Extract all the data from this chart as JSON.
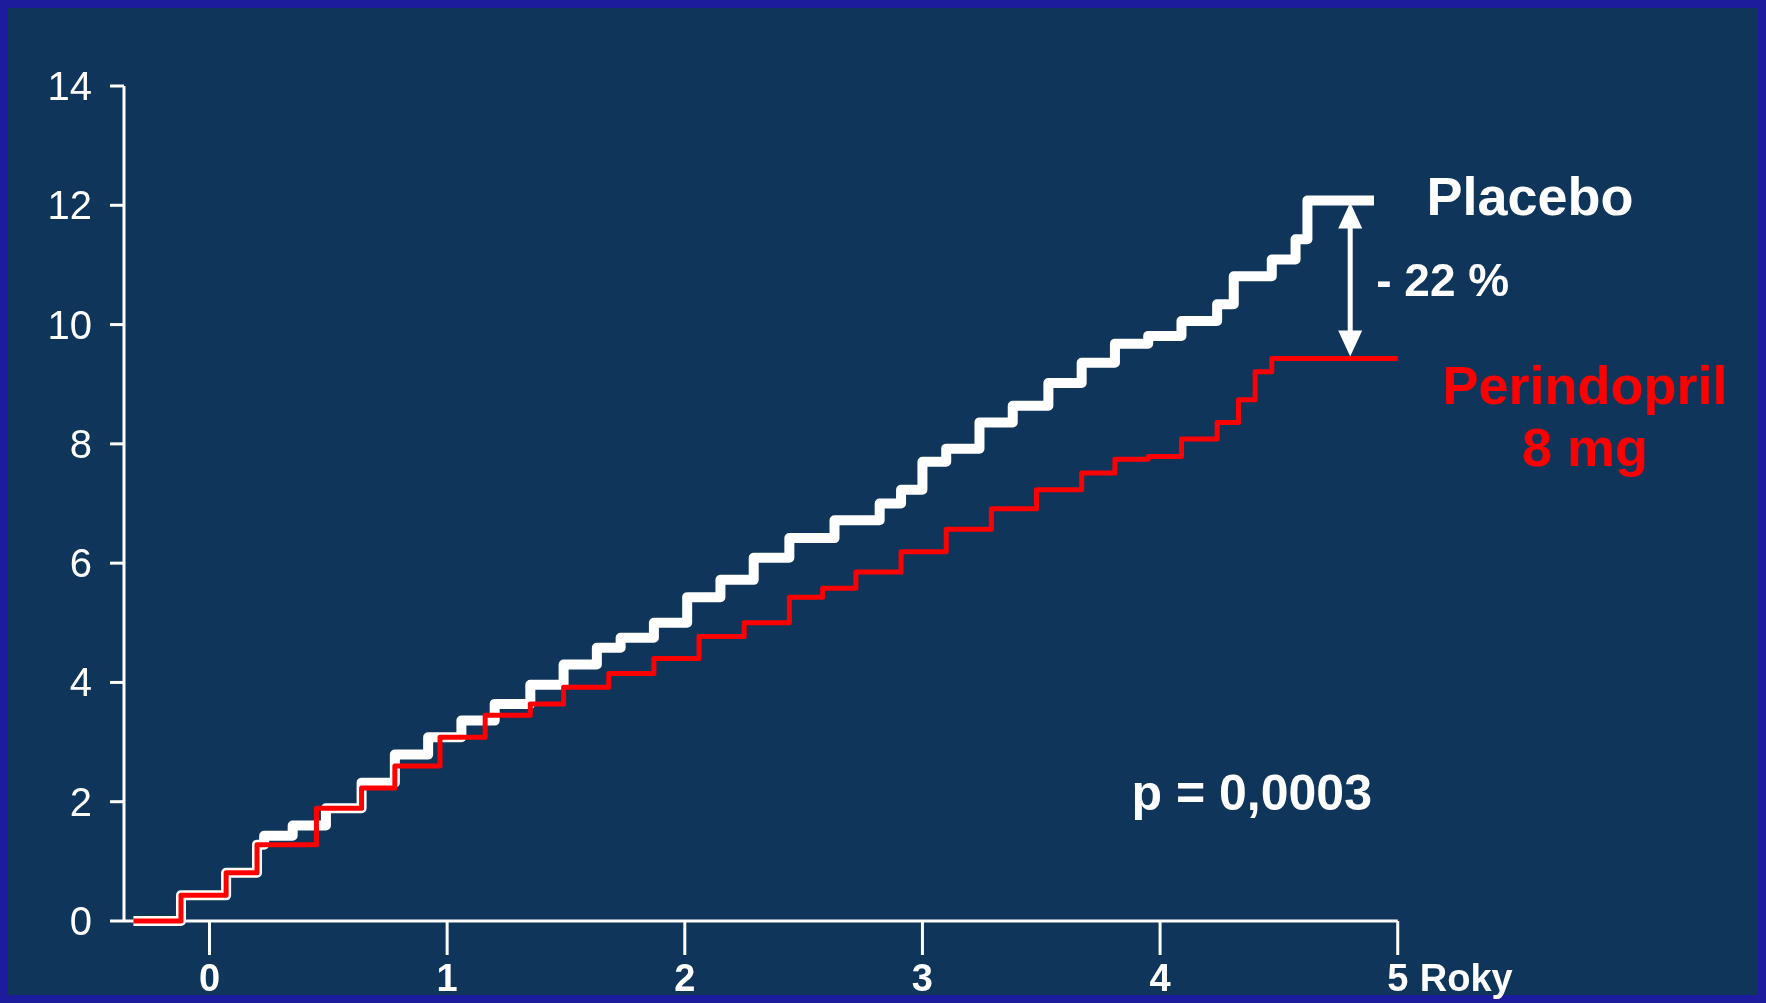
{
  "chart_data": {
    "type": "step",
    "xlabel": "Roky",
    "xlim": [
      -0.36,
      5.0
    ],
    "xticks": [
      0,
      1,
      2,
      3,
      4,
      5
    ],
    "ylim": [
      0,
      14
    ],
    "yticks": [
      0,
      2,
      4,
      6,
      8,
      10,
      12,
      14
    ],
    "grid": false,
    "legend": "right",
    "annotations": [
      "- 22 %",
      "p = 0,0003"
    ],
    "series": [
      {
        "name": "Placebo",
        "color": "#ffffff",
        "x": [
          -0.32,
          -0.12,
          0.07,
          0.2,
          0.23,
          0.35,
          0.49,
          0.64,
          0.78,
          0.92,
          1.06,
          1.2,
          1.35,
          1.49,
          1.63,
          1.73,
          1.87,
          2.01,
          2.15,
          2.29,
          2.44,
          2.63,
          2.82,
          2.91,
          3.0,
          3.1,
          3.24,
          3.38,
          3.53,
          3.67,
          3.81,
          3.95,
          4.09,
          4.24,
          4.31,
          4.47,
          4.57,
          4.62,
          4.9
        ],
        "values": [
          0,
          0.43,
          0.81,
          1.28,
          1.43,
          1.6,
          1.89,
          2.32,
          2.79,
          3.08,
          3.36,
          3.64,
          3.96,
          4.3,
          4.58,
          4.75,
          5.0,
          5.43,
          5.72,
          6.09,
          6.42,
          6.72,
          7.0,
          7.23,
          7.7,
          7.92,
          8.36,
          8.64,
          9.02,
          9.36,
          9.68,
          9.81,
          10.06,
          10.34,
          10.81,
          11.09,
          11.43,
          12.08,
          12.08
        ]
      },
      {
        "name": "Perindopril 8 mg",
        "color": "#ff0000",
        "x": [
          -0.32,
          -0.12,
          0.07,
          0.2,
          0.45,
          0.64,
          0.78,
          0.97,
          1.16,
          1.35,
          1.49,
          1.68,
          1.87,
          2.06,
          2.25,
          2.44,
          2.58,
          2.72,
          2.91,
          3.1,
          3.29,
          3.48,
          3.67,
          3.81,
          3.95,
          4.09,
          4.24,
          4.33,
          4.4,
          4.47,
          4.57,
          5.0
        ],
        "values": [
          0,
          0.43,
          0.81,
          1.28,
          1.89,
          2.23,
          2.6,
          3.08,
          3.45,
          3.64,
          3.92,
          4.15,
          4.4,
          4.77,
          5.0,
          5.43,
          5.58,
          5.85,
          6.19,
          6.57,
          6.91,
          7.23,
          7.51,
          7.74,
          7.79,
          8.08,
          8.36,
          8.74,
          9.21,
          9.43,
          9.43,
          9.43
        ]
      }
    ]
  }
}
